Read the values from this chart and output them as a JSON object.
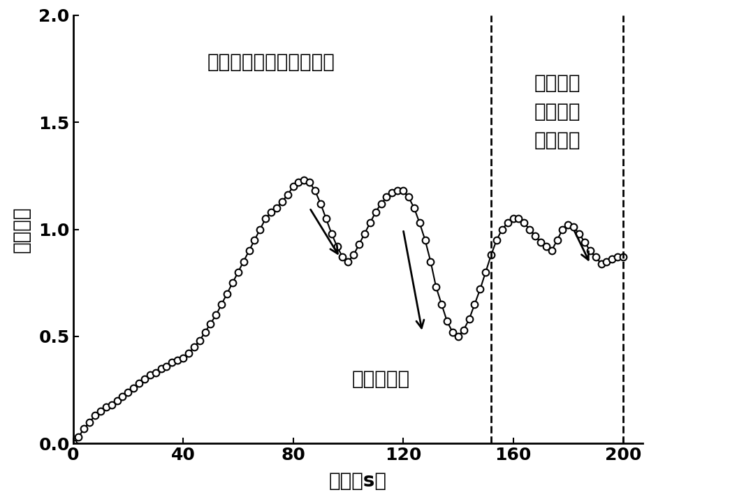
{
  "title": "",
  "xlabel": "时间（s）",
  "ylabel": "摩擦系数",
  "xlim": [
    0,
    207
  ],
  "ylim": [
    0.0,
    2.0
  ],
  "xticks": [
    0,
    40,
    80,
    120,
    160,
    200
  ],
  "yticks": [
    0.0,
    0.5,
    1.0,
    1.5,
    2.0
  ],
  "vline1_x": 152,
  "vline2_x": 200,
  "annotation1": "摩擦系数大幅度下降阶段",
  "annotation2_line1": "摩擦系数",
  "annotation2_line2": "较小幅度",
  "annotation2_line3": "下降阶段",
  "annotation3": "摩擦系数降",
  "line_color": "#000000",
  "marker_color": "#000000",
  "background_color": "#ffffff",
  "font_size_label": 20,
  "font_size_tick": 18,
  "font_size_annotation": 20,
  "x_data": [
    0,
    2,
    4,
    6,
    8,
    10,
    12,
    14,
    16,
    18,
    20,
    22,
    24,
    26,
    28,
    30,
    32,
    34,
    36,
    38,
    40,
    42,
    44,
    46,
    48,
    50,
    52,
    54,
    56,
    58,
    60,
    62,
    64,
    66,
    68,
    70,
    72,
    74,
    76,
    78,
    80,
    82,
    84,
    86,
    88,
    90,
    92,
    94,
    96,
    98,
    100,
    102,
    104,
    106,
    108,
    110,
    112,
    114,
    116,
    118,
    120,
    122,
    124,
    126,
    128,
    130,
    132,
    134,
    136,
    138,
    140,
    142,
    144,
    146,
    148,
    150,
    152,
    154,
    156,
    158,
    160,
    162,
    164,
    166,
    168,
    170,
    172,
    174,
    176,
    178,
    180,
    182,
    184,
    186,
    188,
    190,
    192,
    194,
    196,
    198,
    200
  ],
  "y_data": [
    0.0,
    0.03,
    0.07,
    0.1,
    0.13,
    0.15,
    0.17,
    0.18,
    0.2,
    0.22,
    0.24,
    0.26,
    0.28,
    0.3,
    0.32,
    0.33,
    0.35,
    0.36,
    0.38,
    0.39,
    0.4,
    0.42,
    0.45,
    0.48,
    0.52,
    0.56,
    0.6,
    0.65,
    0.7,
    0.75,
    0.8,
    0.85,
    0.9,
    0.95,
    1.0,
    1.05,
    1.08,
    1.1,
    1.13,
    1.16,
    1.2,
    1.22,
    1.23,
    1.22,
    1.18,
    1.12,
    1.05,
    0.98,
    0.92,
    0.87,
    0.85,
    0.88,
    0.93,
    0.98,
    1.03,
    1.08,
    1.12,
    1.15,
    1.17,
    1.18,
    1.18,
    1.15,
    1.1,
    1.03,
    0.95,
    0.85,
    0.73,
    0.65,
    0.57,
    0.52,
    0.5,
    0.53,
    0.58,
    0.65,
    0.72,
    0.8,
    0.88,
    0.95,
    1.0,
    1.03,
    1.05,
    1.05,
    1.03,
    1.0,
    0.97,
    0.94,
    0.92,
    0.9,
    0.95,
    1.0,
    1.02,
    1.01,
    0.98,
    0.94,
    0.9,
    0.87,
    0.84,
    0.85,
    0.86,
    0.87,
    0.87
  ]
}
